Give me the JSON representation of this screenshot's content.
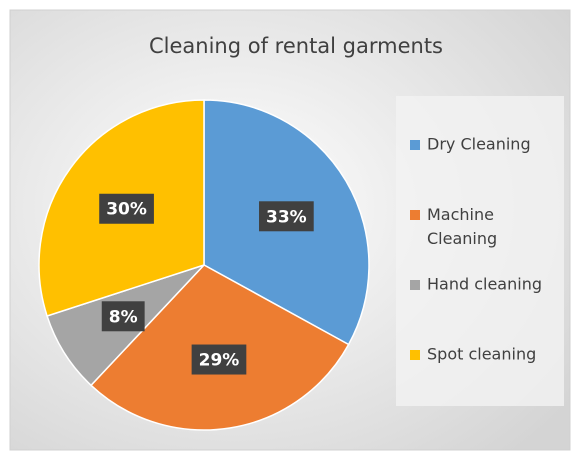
{
  "chart_data": {
    "type": "pie",
    "title": "Cleaning of rental garments",
    "categories": [
      "Dry Cleaning",
      "Machine Cleaning",
      "Hand cleaning",
      "Spot cleaning"
    ],
    "values": [
      33,
      29,
      8,
      30
    ],
    "value_labels": [
      "33%",
      "29%",
      "8%",
      "30%"
    ],
    "colors": [
      "#5b9bd5",
      "#ed7d31",
      "#a5a5a5",
      "#ffc000"
    ],
    "legend": "right"
  }
}
